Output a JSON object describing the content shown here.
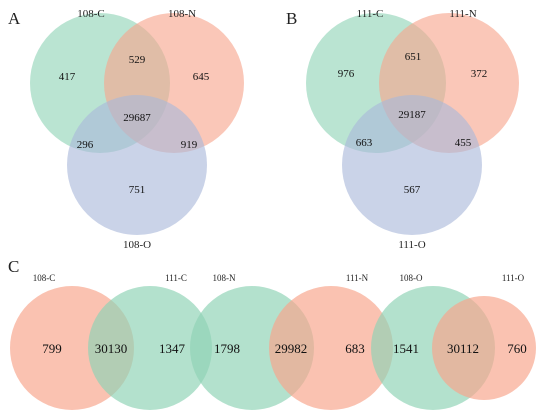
{
  "colors": {
    "green": "#8FD3B6",
    "orange": "#F7A58C",
    "blue": "#A9B8DA"
  },
  "panels": {
    "A": {
      "letter": "A",
      "sets": {
        "c": "108-C",
        "n": "108-N",
        "o": "108-O"
      },
      "values": {
        "c_only": "417",
        "n_only": "645",
        "o_only": "751",
        "cn": "529",
        "co": "296",
        "no": "919",
        "cno": "29687"
      }
    },
    "B": {
      "letter": "B",
      "sets": {
        "c": "111-C",
        "n": "111-N",
        "o": "111-O"
      },
      "values": {
        "c_only": "976",
        "n_only": "372",
        "o_only": "567",
        "cn": "651",
        "co": "663",
        "no": "455",
        "cno": "29187"
      }
    },
    "C": {
      "letter": "C",
      "pairs": [
        {
          "left_label": "108-C",
          "right_label": "111-C",
          "left_only": "799",
          "overlap": "30130",
          "right_only": "1347"
        },
        {
          "left_label": "108-N",
          "right_label": "111-N",
          "left_only": "1798",
          "overlap": "29982",
          "right_only": "683"
        },
        {
          "left_label": "108-O",
          "right_label": "111-O",
          "left_only": "1541",
          "overlap": "30112",
          "right_only": "760"
        }
      ]
    }
  }
}
